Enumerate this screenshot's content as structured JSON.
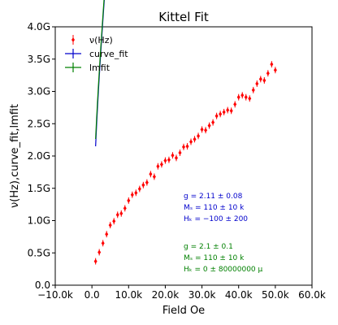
{
  "chart_data": {
    "type": "scatter",
    "title": "Kittel Fit",
    "xlabel": "Field Oe",
    "ylabel": "ν(Hz),curve_fit,lmfit",
    "xlim": [
      -10000,
      60000
    ],
    "ylim": [
      0,
      4000000000
    ],
    "xticks": [
      {
        "value": -10000,
        "label": "−10.0k"
      },
      {
        "value": 0,
        "label": "0.0"
      },
      {
        "value": 10000,
        "label": "10.0k"
      },
      {
        "value": 20000,
        "label": "20.0k"
      },
      {
        "value": 30000,
        "label": "30.0k"
      },
      {
        "value": 40000,
        "label": "40.0k"
      },
      {
        "value": 50000,
        "label": "50.0k"
      },
      {
        "value": 60000,
        "label": "60.0k"
      }
    ],
    "yticks": [
      {
        "value": 0,
        "label": "0.0"
      },
      {
        "value": 500000000,
        "label": "0.5G"
      },
      {
        "value": 1000000000,
        "label": "1.0G"
      },
      {
        "value": 1500000000,
        "label": "1.5G"
      },
      {
        "value": 2000000000,
        "label": "2.0G"
      },
      {
        "value": 2500000000,
        "label": "2.5G"
      },
      {
        "value": 3000000000,
        "label": "3.0G"
      },
      {
        "value": 3500000000,
        "label": "3.5G"
      },
      {
        "value": 4000000000,
        "label": "4.0G"
      }
    ],
    "grid": false,
    "legend_position": "top-left",
    "series": [
      {
        "name": "ν(Hz)",
        "kind": "errorbar",
        "color": "#ff0000",
        "x": [
          1000,
          2000,
          3000,
          4000,
          5000,
          6000,
          7000,
          8000,
          9000,
          10000,
          11000,
          12000,
          13000,
          14000,
          15000,
          16000,
          17000,
          18000,
          19000,
          20000,
          21000,
          22000,
          23000,
          24000,
          25000,
          26000,
          27000,
          28000,
          29000,
          30000,
          31000,
          32000,
          33000,
          34000,
          35000,
          36000,
          37000,
          38000,
          39000,
          40000,
          41000,
          42000,
          43000,
          44000,
          45000,
          46000,
          47000,
          48000,
          49000,
          50000
        ],
        "y": [
          370000000,
          510000000,
          650000000,
          790000000,
          930000000,
          990000000,
          1090000000,
          1110000000,
          1190000000,
          1310000000,
          1400000000,
          1430000000,
          1490000000,
          1550000000,
          1590000000,
          1720000000,
          1680000000,
          1840000000,
          1870000000,
          1930000000,
          1940000000,
          2010000000,
          1970000000,
          2050000000,
          2140000000,
          2150000000,
          2220000000,
          2260000000,
          2310000000,
          2410000000,
          2400000000,
          2470000000,
          2520000000,
          2620000000,
          2650000000,
          2680000000,
          2710000000,
          2700000000,
          2800000000,
          2910000000,
          2940000000,
          2910000000,
          2890000000,
          3020000000,
          3120000000,
          3190000000,
          3170000000,
          3280000000,
          3420000000,
          3330000000
        ],
        "yerr": 50000000
      },
      {
        "name": "curve_fit",
        "kind": "line",
        "color": "#0000cc",
        "g": 2.11,
        "Ms": 110000,
        "Hk": -100
      },
      {
        "name": "lmfit",
        "kind": "line",
        "color": "#008000",
        "g": 2.1,
        "Ms": 110000,
        "Hk": 0
      }
    ],
    "annotations": [
      {
        "color": "#0000cc",
        "lines": [
          "g = 2.11 ± 0.08",
          "Mₛ = 110 ± 10 k",
          "Hₖ = −100 ± 200"
        ]
      },
      {
        "color": "#008000",
        "lines": [
          "g = 2.1 ± 0.1",
          "Mₛ = 110 ± 10 k",
          "Hₖ = 0 ± 80000000 μ"
        ]
      }
    ]
  }
}
